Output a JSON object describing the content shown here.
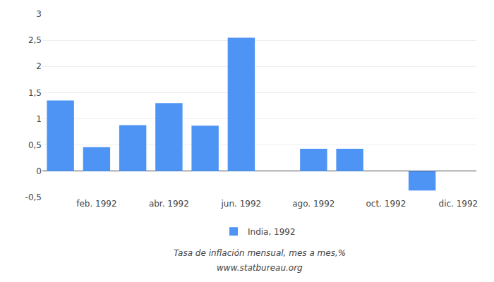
{
  "chart_data": {
    "type": "bar",
    "categories": [
      null,
      "feb. 1992",
      null,
      "abr. 1992",
      null,
      "jun. 1992",
      null,
      "ago. 1992",
      null,
      "oct. 1992",
      null,
      "dic. 1992"
    ],
    "series": [
      {
        "name": "India, 1992",
        "color": "#4d94f5",
        "values": [
          1.35,
          0.46,
          0.88,
          1.3,
          0.87,
          2.55,
          null,
          0.43,
          0.43,
          null,
          -0.37,
          null
        ]
      }
    ],
    "ylim": [
      -0.5,
      3.0
    ],
    "yticks": [
      {
        "value": -0.5,
        "label": "-0,5"
      },
      0,
      {
        "value": 0.5,
        "label": "0,5"
      },
      1,
      {
        "value": 1.5,
        "label": "1,5"
      },
      2,
      {
        "value": 2.5,
        "label": "2,5"
      },
      3
    ],
    "annotations": [
      "Tasa de inflación mensual, mes a mes,%",
      "www.statbureau.org"
    ],
    "grid": true,
    "legend": "bottom"
  }
}
